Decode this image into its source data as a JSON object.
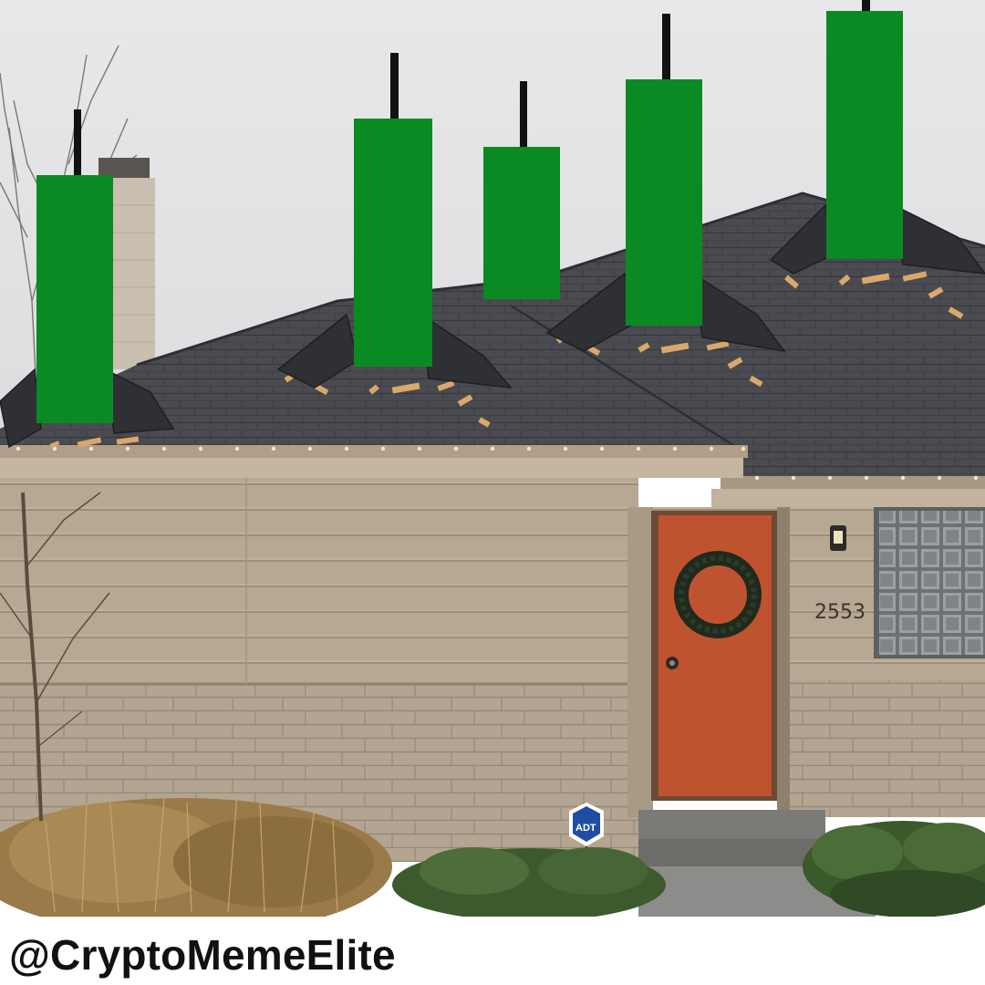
{
  "caption": {
    "handle": "@CryptoMemeElite"
  },
  "house": {
    "house_number": "2553",
    "security_sign": "ADT",
    "door_color": "#c0532f",
    "siding_color": "#b8a995",
    "roof_color": "#4a4b50",
    "sky_color": "#e3e3e5"
  },
  "candles": {
    "color": "#0a8a22",
    "wick_color": "#111111",
    "count": 5
  }
}
